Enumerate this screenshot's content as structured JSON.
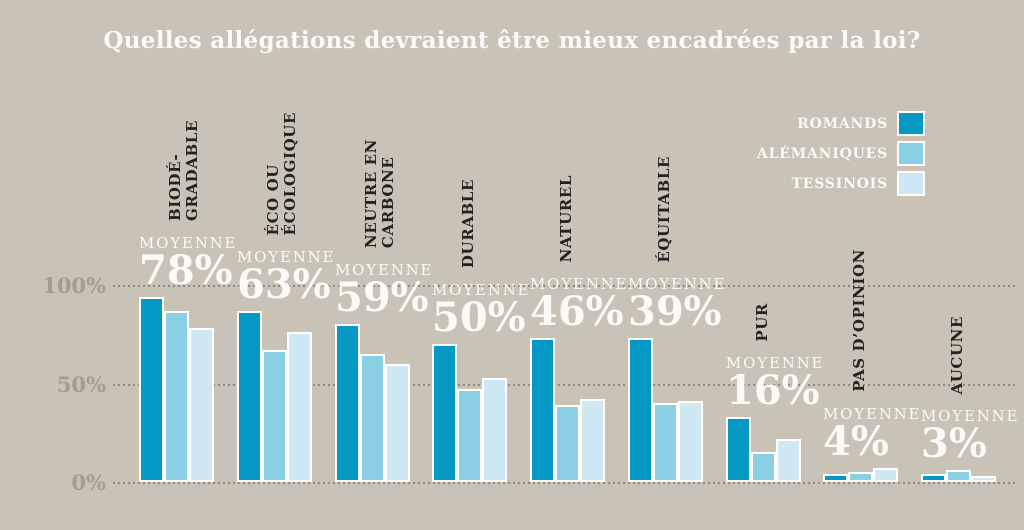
{
  "title": "Quelles allégations devraient être mieux encadrées par la loi?",
  "colors": {
    "background": "#c9c2b6",
    "romands": "#0698c4",
    "alemaniques": "#8bcfe5",
    "tessinois": "#d0e8f3",
    "axis_text": "#a59c8f",
    "grid_dots": "#90877a",
    "category_text": "#232220",
    "light_text": "#fbfaf5"
  },
  "legend": {
    "items": [
      {
        "label": "ROMANDS",
        "series": "romands",
        "color": "#0698c4"
      },
      {
        "label": "ALÉMANIQUES",
        "series": "alemaniques",
        "color": "#8bcfe5"
      },
      {
        "label": "TESSINOIS",
        "series": "tessinois",
        "color": "#d0e8f3"
      }
    ]
  },
  "y_axis": {
    "ticks": [
      {
        "label": "100%",
        "value": 100
      },
      {
        "label": "50%",
        "value": 50
      },
      {
        "label": "0%",
        "value": 0
      }
    ]
  },
  "groups": [
    {
      "label": "BIODÉ-\nGRADABLE",
      "moyenne_caption": "MOYENNE",
      "average_label": "78%",
      "values": {
        "romands": 93,
        "alemaniques": 86,
        "tessinois": 77
      }
    },
    {
      "label": "ÉCO OU\nÉCOLOGIQUE",
      "moyenne_caption": "MOYENNE",
      "average_label": "63%",
      "values": {
        "romands": 86,
        "alemaniques": 66,
        "tessinois": 75
      }
    },
    {
      "label": "NEUTRE EN\nCARBONE",
      "moyenne_caption": "MOYENNE",
      "average_label": "59%",
      "values": {
        "romands": 79,
        "alemaniques": 64,
        "tessinois": 59
      }
    },
    {
      "label": "DURABLE",
      "moyenne_caption": "MOYENNE",
      "average_label": "50%",
      "values": {
        "romands": 69,
        "alemaniques": 46,
        "tessinois": 52
      }
    },
    {
      "label": "NATUREL",
      "moyenne_caption": "MOYENNE",
      "average_label": "46%",
      "values": {
        "romands": 72,
        "alemaniques": 38,
        "tessinois": 41
      }
    },
    {
      "label": "ÉQUITABLE",
      "moyenne_caption": "MOYENNE",
      "average_label": "39%",
      "values": {
        "romands": 72,
        "alemaniques": 39,
        "tessinois": 40
      }
    },
    {
      "label": "PUR",
      "moyenne_caption": "MOYENNE",
      "average_label": "16%",
      "values": {
        "romands": 32,
        "alemaniques": 14,
        "tessinois": 21
      }
    },
    {
      "label": "PAS D’OPINION",
      "moyenne_caption": "MOYENNE",
      "average_label": "4%",
      "values": {
        "romands": 3,
        "alemaniques": 4,
        "tessinois": 6
      }
    },
    {
      "label": "AUCUNE",
      "moyenne_caption": "MOYENNE",
      "average_label": "3%",
      "values": {
        "romands": 3,
        "alemaniques": 5,
        "tessinois": 2
      }
    }
  ],
  "chart_data": {
    "type": "bar",
    "title": "Quelles allégations devraient être mieux encadrées par la loi?",
    "categories": [
      "Biodégradable",
      "Éco ou écologique",
      "Neutre en carbone",
      "Durable",
      "Naturel",
      "Équitable",
      "Pur",
      "Pas d’opinion",
      "Aucune"
    ],
    "series": [
      {
        "name": "Romands",
        "color": "#0698c4",
        "values": [
          93,
          86,
          79,
          69,
          72,
          72,
          32,
          3,
          3
        ]
      },
      {
        "name": "Alémaniques",
        "color": "#8bcfe5",
        "values": [
          86,
          66,
          64,
          46,
          38,
          39,
          14,
          4,
          5
        ]
      },
      {
        "name": "Tessinois",
        "color": "#d0e8f3",
        "values": [
          77,
          75,
          59,
          52,
          41,
          40,
          21,
          6,
          2
        ]
      }
    ],
    "averages": {
      "label": "MOYENNE",
      "values": [
        78,
        63,
        59,
        50,
        46,
        39,
        16,
        4,
        3
      ]
    },
    "xlabel": "",
    "ylabel": "",
    "ylim": [
      0,
      100
    ],
    "y_ticks_shown": [
      0,
      50,
      100
    ],
    "grid": "dotted horizontal at 0/50/100",
    "legend_position": "top-right"
  }
}
